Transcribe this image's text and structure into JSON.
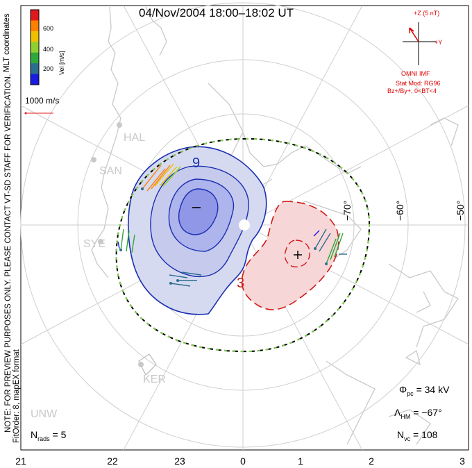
{
  "title": "04/Nov/2004   18:00–18:02  UT",
  "side_notes": {
    "mlt": "MLT coordinates",
    "preview": "NOTE: FOR PREVIEW PURPOSES ONLY. PLEASE CONTACT VT-SD STAFF FOR VERIFICATION.",
    "fit": "FitOrder: 8, mapEX format"
  },
  "colorbar": {
    "label": "Vel [m/s]",
    "ticks": [
      "600",
      "400",
      "200"
    ],
    "colors": [
      "#e01a1a",
      "#ff7f00",
      "#f0c000",
      "#8fd030",
      "#2ea83a",
      "#2c6e8e",
      "#1a1ae0"
    ]
  },
  "ref_vector": {
    "label": "1000 m/s",
    "color": "#e01a1a"
  },
  "imf": {
    "top_label": "+Z (5 nT)",
    "y_label": "+Y",
    "source": "OMNI IMF",
    "model": "Stat Mod: RG96",
    "condition": "Bz+/By+, 0<BT<4"
  },
  "stations": [
    "HAL",
    "SAN",
    "SYE",
    "KER",
    "UNW"
  ],
  "potential": {
    "min_label": "9",
    "max_label": "3",
    "min_sign": "−",
    "max_sign": "+"
  },
  "lat_labels": [
    "−70°",
    "−60°",
    "−50°"
  ],
  "stats": {
    "phi_sym": "Φ",
    "phi_sub": "pc",
    "phi_val": "=   34 kV",
    "lam_sym": "Λ",
    "lam_sub": "HM",
    "lam_val": "=  −67°",
    "nvc_sym": "N",
    "nvc_sub": "vc",
    "nvc_val": "=   108",
    "nrads_sym": "N",
    "nrads_sub": "rads",
    "nrads_val": "=   5"
  },
  "x_ticks": [
    "21",
    "22",
    "23",
    "0",
    "1",
    "2",
    "3"
  ],
  "colors": {
    "negative": "#1a2fb0",
    "positive": "#d21a1a",
    "hmb": "#7fd04a",
    "grid": "#cfcfcf",
    "land": "#c9c9c9"
  }
}
